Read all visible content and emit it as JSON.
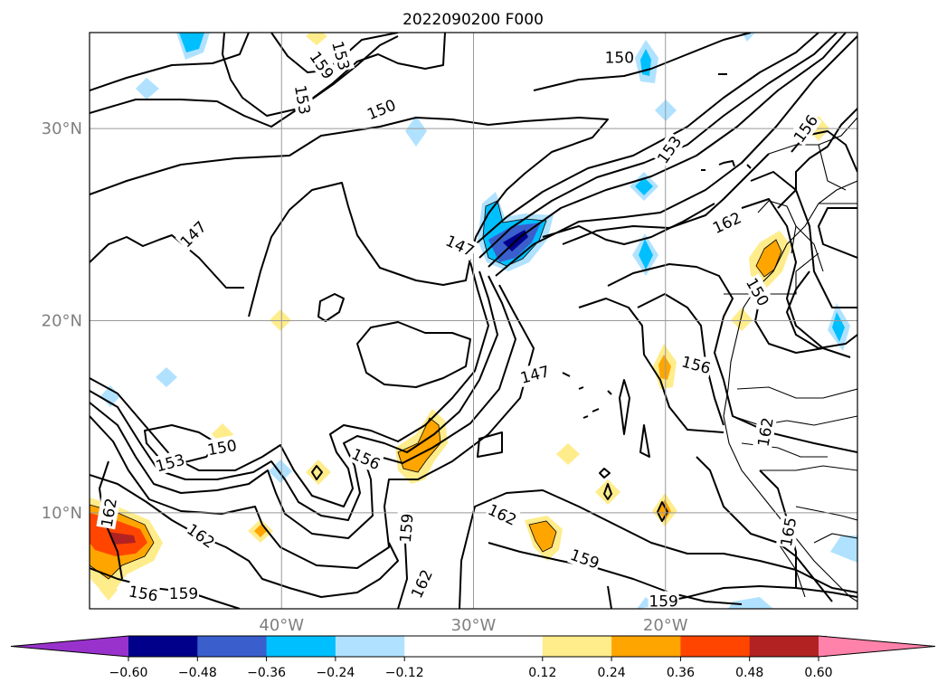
{
  "chart_data": {
    "type": "heatmap",
    "title": "2022090200 F000",
    "lon_range": [
      -50,
      -10
    ],
    "lat_range": [
      5,
      35
    ],
    "lat_ticks": [
      {
        "value": 30,
        "label": "30°N"
      },
      {
        "value": 20,
        "label": "20°N"
      },
      {
        "value": 10,
        "label": "10°N"
      }
    ],
    "lon_ticks": [
      {
        "value": -40,
        "label": "40°W"
      },
      {
        "value": -30,
        "label": "30°W"
      },
      {
        "value": -20,
        "label": "20°W"
      }
    ],
    "grid": true,
    "colorbar": {
      "orientation": "horizontal",
      "extend": "both",
      "levels": [
        -0.72,
        -0.6,
        -0.48,
        -0.36,
        -0.24,
        -0.12,
        0.12,
        0.24,
        0.36,
        0.48,
        0.6,
        0.72
      ],
      "tick_labels": [
        "−0.60",
        "−0.48",
        "−0.36",
        "−0.24",
        "−0.12",
        "0.12",
        "0.24",
        "0.36",
        "0.48",
        "0.60"
      ],
      "colors": [
        "#9932cc",
        "#00008b",
        "#3a5fcd",
        "#00bfff",
        "#b0e2ff",
        "#ffffff",
        "#ffec8b",
        "#ffa500",
        "#ff4500",
        "#b22222",
        "#ff82ab"
      ]
    },
    "contour_labels": [
      {
        "text": "150",
        "lon": -34.8,
        "lat": 31.0,
        "angle": -22
      },
      {
        "text": "150",
        "lon": -22.4,
        "lat": 33.7,
        "angle": 0
      },
      {
        "text": "153",
        "lon": -38.9,
        "lat": 31.5,
        "angle": 80
      },
      {
        "text": "159",
        "lon": -37.9,
        "lat": 33.3,
        "angle": 55
      },
      {
        "text": "153",
        "lon": -36.9,
        "lat": 33.8,
        "angle": 75
      },
      {
        "text": "147",
        "lon": -44.6,
        "lat": 24.5,
        "angle": -45
      },
      {
        "text": "147",
        "lon": -30.7,
        "lat": 23.9,
        "angle": 25
      },
      {
        "text": "147",
        "lon": -26.8,
        "lat": 17.2,
        "angle": -15
      },
      {
        "text": "153",
        "lon": -19.8,
        "lat": 28.9,
        "angle": -55
      },
      {
        "text": "156",
        "lon": -12.7,
        "lat": 30.0,
        "angle": -55
      },
      {
        "text": "162",
        "lon": -16.8,
        "lat": 25.1,
        "angle": -25
      },
      {
        "text": "156",
        "lon": -18.4,
        "lat": 17.7,
        "angle": 15
      },
      {
        "text": "150",
        "lon": -15.2,
        "lat": 21.5,
        "angle": 60
      },
      {
        "text": "150",
        "lon": -43.1,
        "lat": 13.4,
        "angle": -10
      },
      {
        "text": "153",
        "lon": -45.8,
        "lat": 12.6,
        "angle": -15
      },
      {
        "text": "156",
        "lon": -35.6,
        "lat": 12.8,
        "angle": 25
      },
      {
        "text": "159",
        "lon": -33.5,
        "lat": 9.2,
        "angle": -85
      },
      {
        "text": "162",
        "lon": -49.0,
        "lat": 10.0,
        "angle": -80
      },
      {
        "text": "162",
        "lon": -44.2,
        "lat": 8.8,
        "angle": 35
      },
      {
        "text": "162",
        "lon": -32.7,
        "lat": 6.3,
        "angle": -65
      },
      {
        "text": "162",
        "lon": -28.5,
        "lat": 9.9,
        "angle": 25
      },
      {
        "text": "159",
        "lon": -24.2,
        "lat": 7.6,
        "angle": 20
      },
      {
        "text": "159",
        "lon": -20.1,
        "lat": 5.4,
        "angle": 0
      },
      {
        "text": "156",
        "lon": -47.2,
        "lat": 5.8,
        "angle": 10
      },
      {
        "text": "159",
        "lon": -45.1,
        "lat": 5.8,
        "angle": 0
      },
      {
        "text": "162",
        "lon": -14.8,
        "lat": 14.2,
        "angle": -80
      },
      {
        "text": "165",
        "lon": -13.6,
        "lat": 9.0,
        "angle": -80
      }
    ]
  }
}
